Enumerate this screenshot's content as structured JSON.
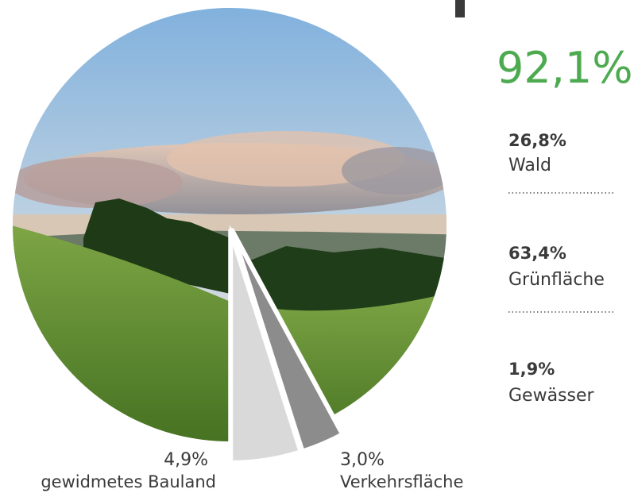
{
  "chart_data": {
    "type": "pie",
    "categories": [
      "gewidmetes Bauland",
      "Verkehrsfläche",
      null
    ],
    "values": [
      4.9,
      3.0,
      92.1
    ],
    "value_labels": [
      "4,9%",
      "3,0%",
      "92,1%"
    ],
    "colors": [
      "#d9d9d9",
      "#8c8c8c",
      "#6f9a3a"
    ],
    "breakdown": {
      "categories": [
        "Wald",
        "Grünfläche",
        "Gewässer"
      ],
      "values": [
        26.8,
        63.4,
        1.9
      ],
      "value_labels": [
        "26,8%",
        "63,4%",
        "1,9%"
      ],
      "color": "#4daa50"
    }
  }
}
